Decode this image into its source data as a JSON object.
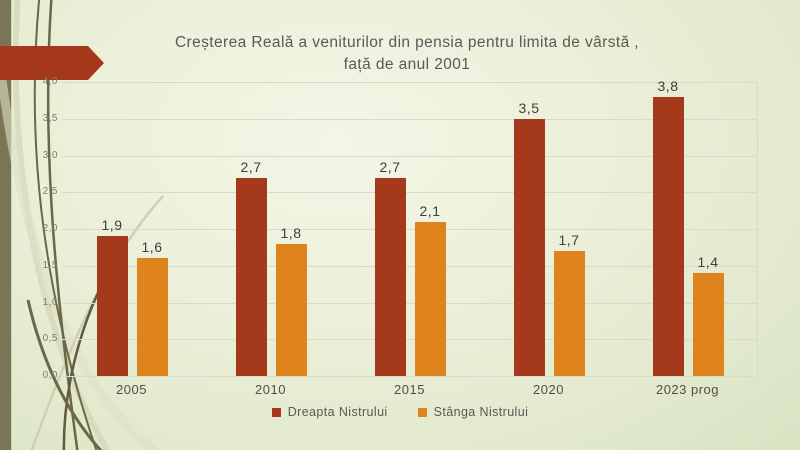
{
  "slide": {
    "title_line1": "Creșterea Reală a veniturilor din pensia pentru limita de vârstă ,",
    "title_line2": "față de anul 2001"
  },
  "colors": {
    "background": "#eaeed8",
    "left_stripe": "#7b7557",
    "arrow": "#a5371a",
    "series1": "#a5391b",
    "series2": "#df831d",
    "gridline": "#d7dbc7",
    "title_text": "#595957",
    "vine_dark": "#6b6747",
    "vine_light": "#cdd1ae"
  },
  "chart_data": {
    "type": "bar",
    "title": "Creșterea Reală a veniturilor din pensia pentru limita de vârstă , față de anul 2001",
    "categories": [
      "2005",
      "2010",
      "2015",
      "2020",
      "2023 prog"
    ],
    "series": [
      {
        "name": "Dreapta Nistrului",
        "color": "#a5391b",
        "values": [
          1.9,
          2.7,
          2.7,
          3.5,
          3.8
        ],
        "labels": [
          "1,9",
          "2,7",
          "2,7",
          "3,5",
          "3,8"
        ]
      },
      {
        "name": "Stânga Nistrului",
        "color": "#df831d",
        "values": [
          1.6,
          1.8,
          2.1,
          1.7,
          1.4
        ],
        "labels": [
          "1,6",
          "1,8",
          "2,1",
          "1,7",
          "1,4"
        ]
      }
    ],
    "y_axis": {
      "min": 0,
      "max": 4,
      "step": 0.5,
      "tick_labels": [
        "0,0",
        "0,5",
        "1,0",
        "1,5",
        "2,0",
        "2,5",
        "3,0",
        "3,5",
        "4,0"
      ]
    },
    "grid": true,
    "legend_position": "bottom"
  }
}
